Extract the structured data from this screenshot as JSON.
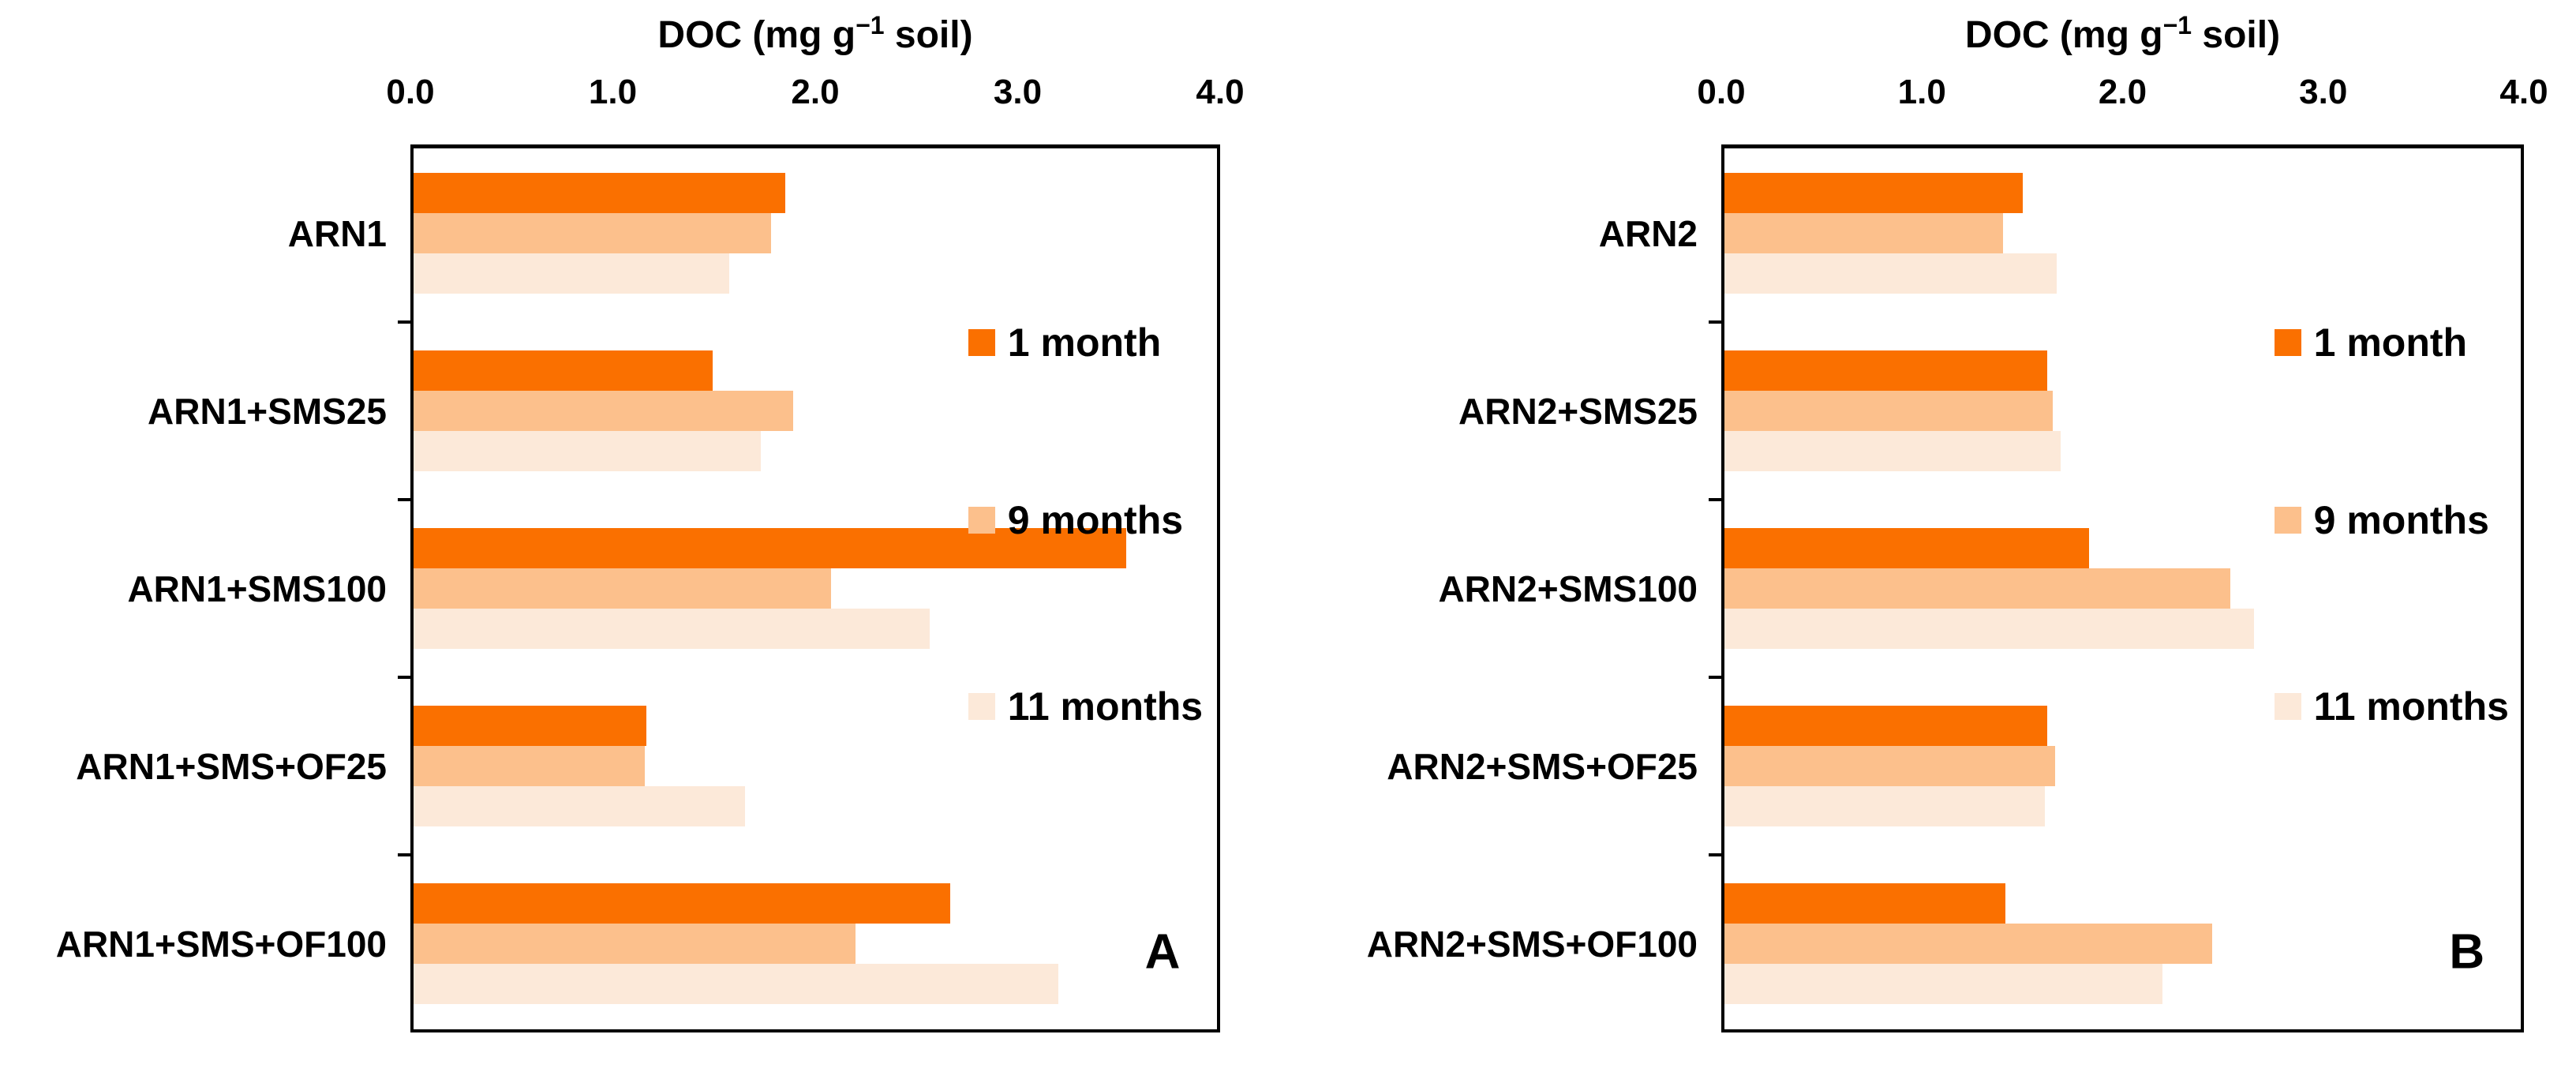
{
  "figure": {
    "axis_title_prefix": "DOC (mg g",
    "axis_title_sup": "−1",
    "axis_title_suffix": " soil)",
    "x_tick_labels": [
      "0.0",
      "1.0",
      "2.0",
      "3.0",
      "4.0"
    ]
  },
  "chart_data": [
    {
      "type": "bar",
      "orientation": "horizontal",
      "panel_label": "A",
      "xlabel": "DOC (mg g−1 soil)",
      "xlim": [
        0.0,
        4.0
      ],
      "x_ticks": [
        0.0,
        1.0,
        2.0,
        3.0,
        4.0
      ],
      "grid": false,
      "legend_position": "inside-right",
      "categories": [
        "ARN1",
        "ARN1+SMS25",
        "ARN1+SMS100",
        "ARN1+SMS+OF25",
        "ARN1+SMS+OF100"
      ],
      "series": [
        {
          "name": "1 month",
          "color": "#FA7000",
          "values": [
            1.85,
            1.49,
            3.55,
            1.16,
            2.67
          ]
        },
        {
          "name": "9 months",
          "color": "#FCC08C",
          "values": [
            1.78,
            1.89,
            2.08,
            1.15,
            2.2
          ]
        },
        {
          "name": "11 months",
          "color": "#FCE9D9",
          "values": [
            1.57,
            1.73,
            2.57,
            1.65,
            3.21
          ]
        }
      ]
    },
    {
      "type": "bar",
      "orientation": "horizontal",
      "panel_label": "B",
      "xlabel": "DOC (mg g−1 soil)",
      "xlim": [
        0.0,
        4.0
      ],
      "x_ticks": [
        0.0,
        1.0,
        2.0,
        3.0,
        4.0
      ],
      "grid": false,
      "legend_position": "inside-right",
      "categories": [
        "ARN2",
        "ARN2+SMS25",
        "ARN2+SMS100",
        "ARN2+SMS+OF25",
        "ARN2+SMS+OF100"
      ],
      "series": [
        {
          "name": "1 month",
          "color": "#FA7000",
          "values": [
            1.5,
            1.62,
            1.83,
            1.62,
            1.41
          ]
        },
        {
          "name": "9 months",
          "color": "#FCC08C",
          "values": [
            1.4,
            1.65,
            2.54,
            1.66,
            2.45
          ]
        },
        {
          "name": "11 months",
          "color": "#FCE9D9",
          "values": [
            1.67,
            1.69,
            2.66,
            1.61,
            2.2
          ]
        }
      ]
    }
  ]
}
